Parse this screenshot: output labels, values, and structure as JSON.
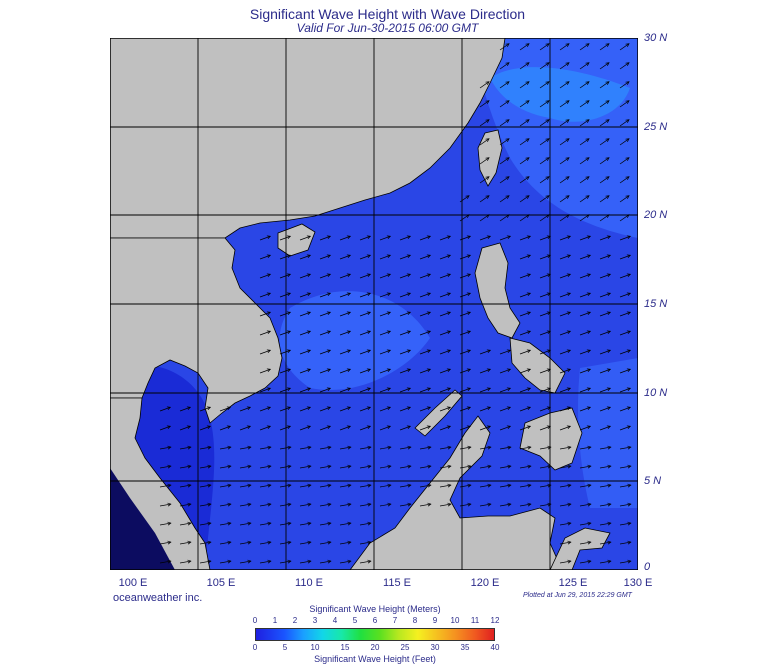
{
  "header": {
    "title": "Significant Wave Height with Wave Direction",
    "subtitle": "Valid For Jun-30-2015 06:00 GMT"
  },
  "map": {
    "lon_labels": [
      "100 E",
      "105 E",
      "110 E",
      "115 E",
      "120 E",
      "125 E",
      "130 E"
    ],
    "lat_labels": [
      "30 N",
      "25 N",
      "20 N",
      "15 N",
      "10 N",
      "5 N",
      "0"
    ],
    "colors": {
      "land": "#c0c0c0",
      "sea_main": "#2a46e6",
      "sea_light": "#3a6cff",
      "sea_bright": "#2f8cff",
      "sea_dark": "#1414c8",
      "grid": "#000000"
    }
  },
  "footer": {
    "brand": "oceanweather inc.",
    "plotted": "Plotted at Jun 29, 2015 22:29 GMT"
  },
  "colorbar": {
    "meters_title": "Significant Wave Height (Meters)",
    "feet_title": "Significant Wave Height (Feet)",
    "meters_ticks": [
      "0",
      "1",
      "2",
      "3",
      "4",
      "5",
      "6",
      "7",
      "8",
      "9",
      "10",
      "11",
      "12"
    ],
    "feet_ticks": [
      "0",
      "5",
      "10",
      "15",
      "20",
      "25",
      "30",
      "35",
      "40"
    ]
  }
}
